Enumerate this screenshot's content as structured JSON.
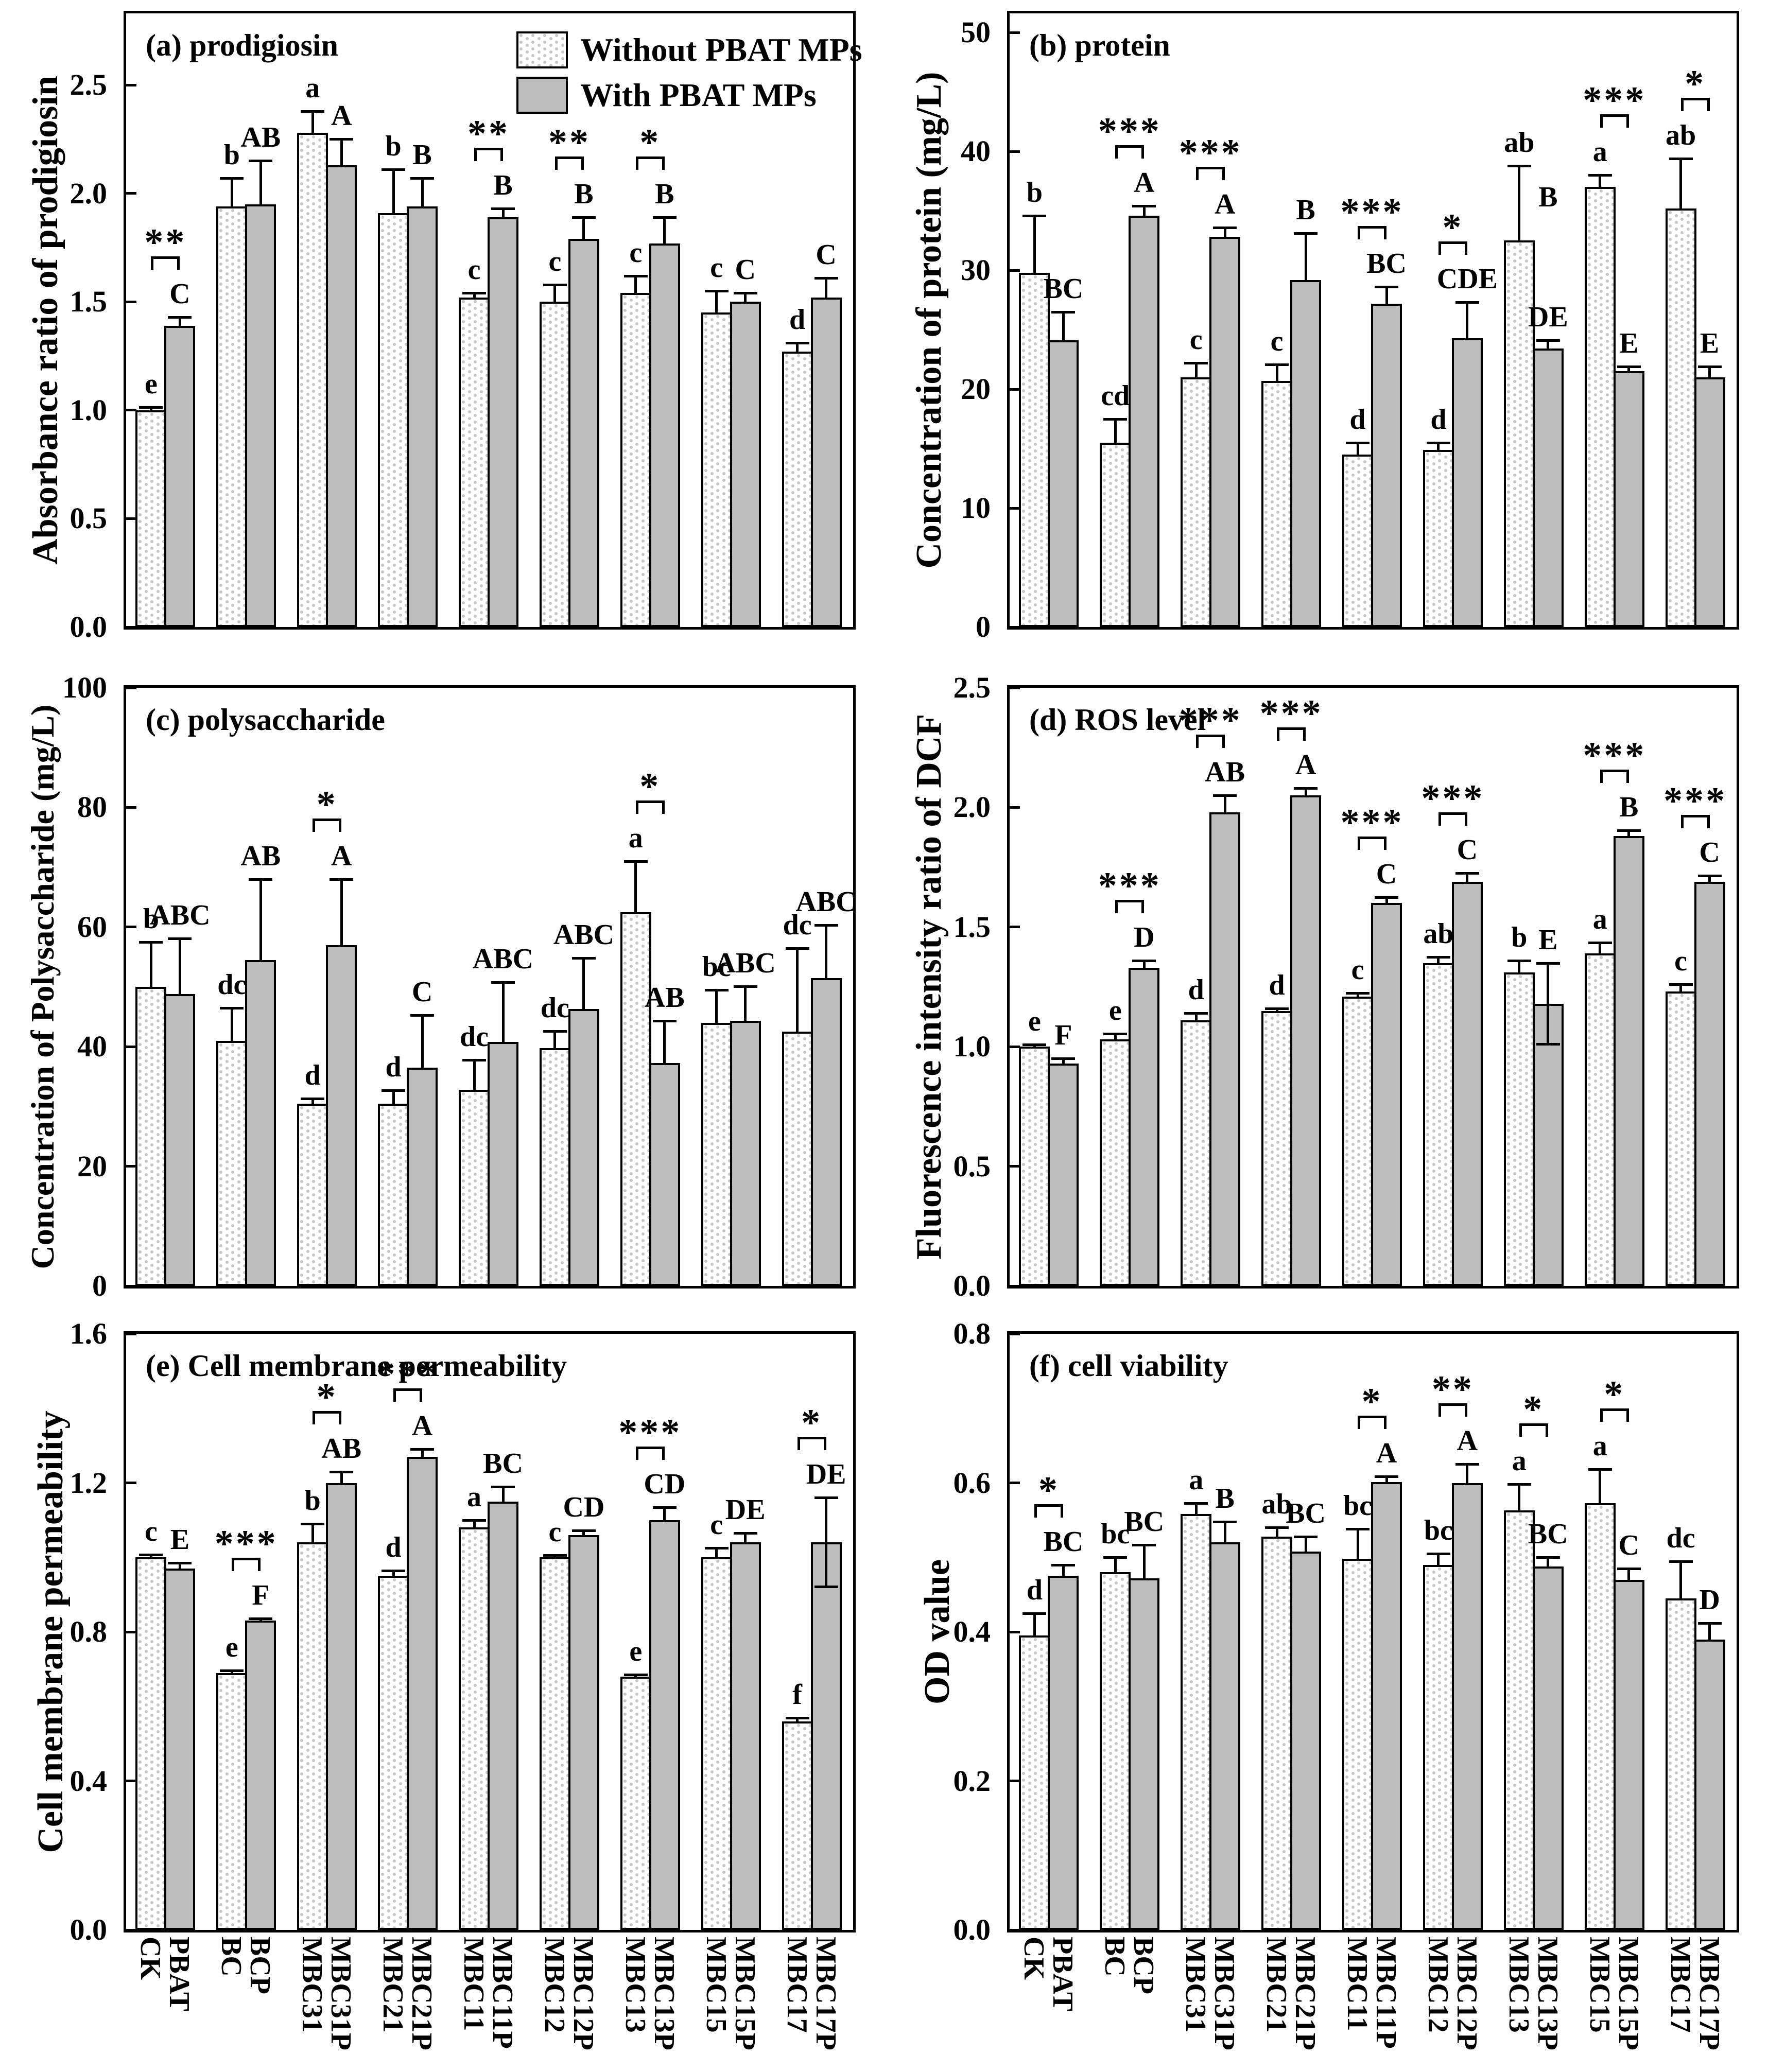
{
  "legend": {
    "items": [
      {
        "swatch": "hatch",
        "label": "Without PBAT MPs"
      },
      {
        "swatch": "gray",
        "label": "With PBAT MPs"
      }
    ]
  },
  "colors": {
    "bar_gray": "#bdbdbd",
    "hatch_dot": "#c6c6c6",
    "ink": "#000000",
    "background": "#ffffff"
  },
  "x_categories": [
    "CK",
    "PBAT",
    "BC",
    "BCP",
    "MBC31",
    "MBC31P",
    "MBC21",
    "MBC21P",
    "MBC11",
    "MBC11P",
    "MBC12",
    "MBC12P",
    "MBC13",
    "MBC13P",
    "MBC15",
    "MBC15P",
    "MBC17",
    "MBC17P"
  ],
  "chart_data": [
    {
      "id": "a",
      "type": "bar",
      "title": "(a) prodigiosin",
      "ylabel": "Absorbance ratio of prodigiosin",
      "ylim": [
        0,
        2.83
      ],
      "yticks": [
        "0.0",
        "0.5",
        "1.0",
        "1.5",
        "2.0",
        "2.5"
      ],
      "series_names": [
        "Without PBAT MPs",
        "With PBAT MPs"
      ],
      "groups": [
        {
          "without": {
            "value": 1.0,
            "err": 0.015,
            "letter": "e"
          },
          "with": {
            "value": 1.39,
            "err": 0.04,
            "letter": "C"
          },
          "sig": "**"
        },
        {
          "without": {
            "value": 1.94,
            "err": 0.13,
            "letter": "b"
          },
          "with": {
            "value": 1.95,
            "err": 0.2,
            "letter": "AB"
          },
          "sig": null
        },
        {
          "without": {
            "value": 2.28,
            "err": 0.1,
            "letter": "a"
          },
          "with": {
            "value": 2.13,
            "err": 0.12,
            "letter": "A"
          },
          "sig": null
        },
        {
          "without": {
            "value": 1.91,
            "err": 0.2,
            "letter": "b"
          },
          "with": {
            "value": 1.94,
            "err": 0.13,
            "letter": "B"
          },
          "sig": null
        },
        {
          "without": {
            "value": 1.52,
            "err": 0.02,
            "letter": "c"
          },
          "with": {
            "value": 1.89,
            "err": 0.04,
            "letter": "B"
          },
          "sig": "**"
        },
        {
          "without": {
            "value": 1.5,
            "err": 0.08,
            "letter": "c"
          },
          "with": {
            "value": 1.79,
            "err": 0.1,
            "letter": "B"
          },
          "sig": "**"
        },
        {
          "without": {
            "value": 1.54,
            "err": 0.08,
            "letter": "c"
          },
          "with": {
            "value": 1.77,
            "err": 0.12,
            "letter": "B"
          },
          "sig": "*"
        },
        {
          "without": {
            "value": 1.45,
            "err": 0.1,
            "letter": "c"
          },
          "with": {
            "value": 1.5,
            "err": 0.04,
            "letter": "C"
          },
          "sig": null
        },
        {
          "without": {
            "value": 1.27,
            "err": 0.04,
            "letter": "d"
          },
          "with": {
            "value": 1.52,
            "err": 0.09,
            "letter": "C"
          },
          "sig": null
        }
      ]
    },
    {
      "id": "b",
      "type": "bar",
      "title": "(b) protein",
      "ylabel": "Concentration of protein (mg/L)",
      "ylim": [
        0,
        51.6
      ],
      "yticks": [
        "0",
        "10",
        "20",
        "30",
        "40",
        "50"
      ],
      "series_names": [
        "Without PBAT MPs",
        "With PBAT MPs"
      ],
      "groups": [
        {
          "without": {
            "value": 29.8,
            "err": 4.8,
            "letter": "b"
          },
          "with": {
            "value": 24.1,
            "err": 2.4,
            "letter": "BC"
          },
          "sig": null
        },
        {
          "without": {
            "value": 15.5,
            "err": 2.0,
            "letter": "cd"
          },
          "with": {
            "value": 34.6,
            "err": 0.8,
            "letter": "A"
          },
          "sig": "***"
        },
        {
          "without": {
            "value": 21.0,
            "err": 1.2,
            "letter": "c"
          },
          "with": {
            "value": 32.8,
            "err": 0.8,
            "letter": "A"
          },
          "sig": "***"
        },
        {
          "without": {
            "value": 20.7,
            "err": 1.4,
            "letter": "c"
          },
          "with": {
            "value": 29.2,
            "err": 3.9,
            "letter": "B"
          },
          "sig": null
        },
        {
          "without": {
            "value": 14.5,
            "err": 1.0,
            "letter": "d"
          },
          "with": {
            "value": 27.2,
            "err": 1.4,
            "letter": "BC"
          },
          "sig": "***"
        },
        {
          "without": {
            "value": 14.9,
            "err": 0.6,
            "letter": "d"
          },
          "with": {
            "value": 24.3,
            "err": 3.0,
            "letter": "CDE"
          },
          "sig": "*"
        },
        {
          "without": {
            "value": 32.5,
            "err": 6.3,
            "letter": "ab"
          },
          "with": {
            "value": 23.4,
            "err": 0.7,
            "letter": "DE"
          },
          "sig": null
        },
        {
          "without": {
            "value": 37.0,
            "err": 1.0,
            "letter": "a"
          },
          "with": {
            "value": 21.5,
            "err": 0.4,
            "letter": "E"
          },
          "sig": "***"
        },
        {
          "without": {
            "value": 35.2,
            "err": 4.2,
            "letter": "ab"
          },
          "with": {
            "value": 21.0,
            "err": 0.9,
            "letter": "E"
          },
          "sig": "*"
        }
      ],
      "extra_labels": [
        {
          "group": 7,
          "bar": "with",
          "value": 36.2,
          "text": "B"
        }
      ]
    },
    {
      "id": "c",
      "type": "bar",
      "title": "(c) polysaccharide",
      "ylabel": "Concentration of Polysaccharide (mg/L)",
      "ylim": [
        0,
        100
      ],
      "yticks": [
        "0",
        "20",
        "40",
        "60",
        "80",
        "100"
      ],
      "series_names": [
        "Without PBAT MPs",
        "With PBAT MPs"
      ],
      "groups": [
        {
          "without": {
            "value": 50.0,
            "err": 7.5,
            "letter": "b"
          },
          "with": {
            "value": 48.8,
            "err": 9.3,
            "letter": "ABC"
          },
          "sig": null
        },
        {
          "without": {
            "value": 41.0,
            "err": 5.5,
            "letter": "dc"
          },
          "with": {
            "value": 54.5,
            "err": 13.5,
            "letter": "AB"
          },
          "sig": null
        },
        {
          "without": {
            "value": 30.5,
            "err": 0.8,
            "letter": "d"
          },
          "with": {
            "value": 57.0,
            "err": 11.0,
            "letter": "A"
          },
          "sig": "*"
        },
        {
          "without": {
            "value": 30.5,
            "err": 2.2,
            "letter": "d"
          },
          "with": {
            "value": 36.5,
            "err": 8.8,
            "letter": "C"
          },
          "sig": null
        },
        {
          "without": {
            "value": 32.8,
            "err": 5.0,
            "letter": "dc"
          },
          "with": {
            "value": 40.8,
            "err": 10.0,
            "letter": "ABC"
          },
          "sig": null
        },
        {
          "without": {
            "value": 39.8,
            "err": 2.8,
            "letter": "dc"
          },
          "with": {
            "value": 46.3,
            "err": 8.5,
            "letter": "ABC"
          },
          "sig": null
        },
        {
          "without": {
            "value": 62.5,
            "err": 8.5,
            "letter": "a"
          },
          "with": {
            "value": 37.3,
            "err": 7.0,
            "letter": "AB"
          },
          "sig": "*"
        },
        {
          "without": {
            "value": 44.0,
            "err": 5.5,
            "letter": "bc"
          },
          "with": {
            "value": 44.3,
            "err": 5.8,
            "letter": "ABC"
          },
          "sig": null
        },
        {
          "without": {
            "value": 42.5,
            "err": 14.0,
            "letter": "dc"
          },
          "with": {
            "value": 51.5,
            "err": 8.8,
            "letter": "ABC"
          },
          "sig": null
        }
      ]
    },
    {
      "id": "d",
      "type": "bar",
      "title": "(d) ROS level",
      "ylabel": "Fluorescence intensity ratio of DCF",
      "ylim": [
        0,
        2.5
      ],
      "yticks": [
        "0.0",
        "0.5",
        "1.0",
        "1.5",
        "2.0",
        "2.5"
      ],
      "series_names": [
        "Without PBAT MPs",
        "With PBAT MPs"
      ],
      "groups": [
        {
          "without": {
            "value": 1.0,
            "err": 0.01,
            "letter": "e"
          },
          "with": {
            "value": 0.93,
            "err": 0.02,
            "letter": "F"
          },
          "sig": null
        },
        {
          "without": {
            "value": 1.03,
            "err": 0.025,
            "letter": "e"
          },
          "with": {
            "value": 1.33,
            "err": 0.03,
            "letter": "D"
          },
          "sig": "***"
        },
        {
          "without": {
            "value": 1.11,
            "err": 0.03,
            "letter": "d"
          },
          "with": {
            "value": 1.98,
            "err": 0.07,
            "letter": "AB"
          },
          "sig": "***"
        },
        {
          "without": {
            "value": 1.15,
            "err": 0.01,
            "letter": "d"
          },
          "with": {
            "value": 2.05,
            "err": 0.03,
            "letter": "A"
          },
          "sig": "***"
        },
        {
          "without": {
            "value": 1.21,
            "err": 0.015,
            "letter": "c"
          },
          "with": {
            "value": 1.6,
            "err": 0.025,
            "letter": "C"
          },
          "sig": "***"
        },
        {
          "without": {
            "value": 1.35,
            "err": 0.025,
            "letter": "ab"
          },
          "with": {
            "value": 1.69,
            "err": 0.035,
            "letter": "C"
          },
          "sig": "***"
        },
        {
          "without": {
            "value": 1.31,
            "err": 0.05,
            "letter": "b"
          },
          "with": {
            "value": 1.18,
            "err": 0.17,
            "err_down": 0.17,
            "letter": "E"
          },
          "sig": null
        },
        {
          "without": {
            "value": 1.39,
            "err": 0.045,
            "letter": "a"
          },
          "with": {
            "value": 1.88,
            "err": 0.025,
            "letter": "B"
          },
          "sig": "***"
        },
        {
          "without": {
            "value": 1.23,
            "err": 0.03,
            "letter": "c"
          },
          "with": {
            "value": 1.69,
            "err": 0.025,
            "letter": "C"
          },
          "sig": "***"
        }
      ]
    },
    {
      "id": "e",
      "type": "bar",
      "title": "(e) Cell membrane permeability",
      "ylabel": "Cell membrane permeability",
      "ylim": [
        0,
        1.6
      ],
      "yticks": [
        "0.0",
        "0.4",
        "0.8",
        "1.2",
        "1.6"
      ],
      "series_names": [
        "Without PBAT MPs",
        "With PBAT MPs"
      ],
      "groups": [
        {
          "without": {
            "value": 1.0,
            "err": 0.008,
            "letter": "c"
          },
          "with": {
            "value": 0.97,
            "err": 0.015,
            "letter": "E"
          },
          "sig": null
        },
        {
          "without": {
            "value": 0.69,
            "err": 0.006,
            "letter": "e"
          },
          "with": {
            "value": 0.83,
            "err": 0.006,
            "letter": "F"
          },
          "sig": "***"
        },
        {
          "without": {
            "value": 1.04,
            "err": 0.05,
            "letter": "b"
          },
          "with": {
            "value": 1.2,
            "err": 0.03,
            "letter": "AB"
          },
          "sig": "*"
        },
        {
          "without": {
            "value": 0.95,
            "err": 0.015,
            "letter": "d"
          },
          "with": {
            "value": 1.27,
            "err": 0.02,
            "letter": "A"
          },
          "sig": "***"
        },
        {
          "without": {
            "value": 1.08,
            "err": 0.02,
            "letter": "a"
          },
          "with": {
            "value": 1.15,
            "err": 0.04,
            "letter": "BC"
          },
          "sig": null
        },
        {
          "without": {
            "value": 1.0,
            "err": 0.006,
            "letter": "c"
          },
          "with": {
            "value": 1.06,
            "err": 0.012,
            "letter": "CD"
          },
          "sig": null
        },
        {
          "without": {
            "value": 0.68,
            "err": 0.006,
            "letter": "e"
          },
          "with": {
            "value": 1.1,
            "err": 0.035,
            "letter": "CD"
          },
          "sig": "***"
        },
        {
          "without": {
            "value": 1.0,
            "err": 0.025,
            "letter": "c"
          },
          "with": {
            "value": 1.04,
            "err": 0.025,
            "letter": "DE"
          },
          "sig": null
        },
        {
          "without": {
            "value": 0.56,
            "err": 0.01,
            "letter": "f"
          },
          "with": {
            "value": 1.04,
            "err": 0.12,
            "err_down": 0.12,
            "letter": "DE"
          },
          "sig": "*"
        }
      ]
    },
    {
      "id": "f",
      "type": "bar",
      "title": "(f) cell viability",
      "ylabel": "OD value",
      "ylim": [
        0,
        0.8
      ],
      "yticks": [
        "0.0",
        "0.2",
        "0.4",
        "0.6",
        "0.8"
      ],
      "series_names": [
        "Without PBAT MPs",
        "With PBAT MPs"
      ],
      "groups": [
        {
          "without": {
            "value": 0.395,
            "err": 0.03,
            "letter": "d"
          },
          "with": {
            "value": 0.475,
            "err": 0.015,
            "letter": "BC"
          },
          "sig": "*"
        },
        {
          "without": {
            "value": 0.48,
            "err": 0.02,
            "letter": "bc"
          },
          "with": {
            "value": 0.472,
            "err": 0.045,
            "letter": "BC"
          },
          "sig": null
        },
        {
          "without": {
            "value": 0.558,
            "err": 0.015,
            "letter": "a"
          },
          "with": {
            "value": 0.52,
            "err": 0.028,
            "letter": "B"
          },
          "sig": null
        },
        {
          "without": {
            "value": 0.528,
            "err": 0.012,
            "letter": "ab"
          },
          "with": {
            "value": 0.508,
            "err": 0.02,
            "letter": "BC"
          },
          "sig": null
        },
        {
          "without": {
            "value": 0.498,
            "err": 0.04,
            "letter": "bc"
          },
          "with": {
            "value": 0.601,
            "err": 0.008,
            "letter": "A"
          },
          "sig": "*"
        },
        {
          "without": {
            "value": 0.49,
            "err": 0.015,
            "letter": "bc"
          },
          "with": {
            "value": 0.6,
            "err": 0.025,
            "letter": "A"
          },
          "sig": "**"
        },
        {
          "without": {
            "value": 0.563,
            "err": 0.035,
            "letter": "a"
          },
          "with": {
            "value": 0.488,
            "err": 0.012,
            "letter": "BC"
          },
          "sig": "*"
        },
        {
          "without": {
            "value": 0.573,
            "err": 0.045,
            "letter": "a"
          },
          "with": {
            "value": 0.47,
            "err": 0.015,
            "letter": "C"
          },
          "sig": "*"
        },
        {
          "without": {
            "value": 0.445,
            "err": 0.05,
            "letter": "dc"
          },
          "with": {
            "value": 0.39,
            "err": 0.022,
            "letter": "D"
          },
          "sig": null
        }
      ]
    }
  ]
}
